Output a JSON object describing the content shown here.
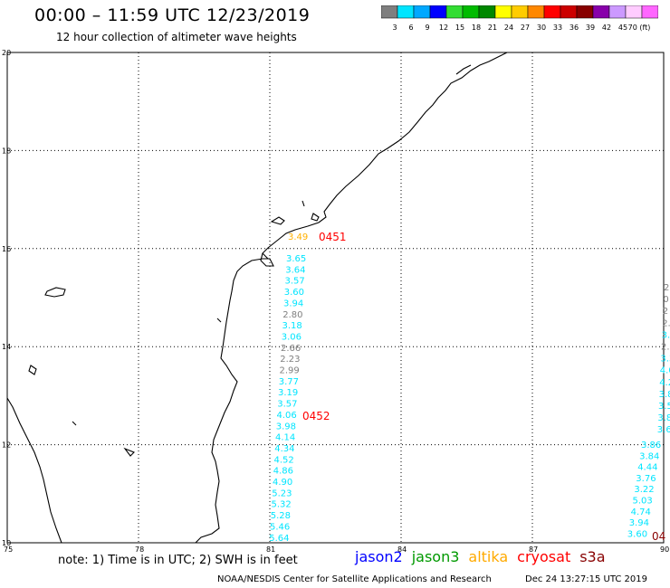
{
  "header": {
    "title": "00:00 – 11:59 UTC 12/23/2019",
    "subtitle": "12 hour collection of altimeter wave heights"
  },
  "color_scale": {
    "labels": [
      "3",
      "6",
      "9",
      "12",
      "15",
      "18",
      "21",
      "24",
      "27",
      "30",
      "33",
      "36",
      "39",
      "42",
      "45",
      "70 (ft)"
    ],
    "colors": [
      "#7f7f7f",
      "#00e5ff",
      "#00a8ff",
      "#0000ff",
      "#33dd33",
      "#00bb00",
      "#008800",
      "#ffff00",
      "#ffcc00",
      "#ff8800",
      "#ff0000",
      "#cc0000",
      "#880000",
      "#8800aa",
      "#cc99ff",
      "#ffccff",
      "#ff66ff"
    ]
  },
  "map": {
    "lat_labels": [
      "20",
      "18",
      "16",
      "14",
      "12",
      "10"
    ],
    "lon_labels": [
      "75",
      "78",
      "81",
      "84",
      "87",
      "90"
    ],
    "lat_range": [
      10,
      20
    ],
    "lon_range": [
      75,
      90
    ],
    "grid": "dotted"
  },
  "passes": [
    {
      "satellite": "jason3",
      "time_label": "0452",
      "time_color": "#ff0000",
      "values": [
        {
          "v": "3.65",
          "c": "#00e5ff"
        },
        {
          "v": "3.64",
          "c": "#00e5ff"
        },
        {
          "v": "3.57",
          "c": "#00e5ff"
        },
        {
          "v": "3.60",
          "c": "#00e5ff"
        },
        {
          "v": "3.94",
          "c": "#00e5ff"
        },
        {
          "v": "2.80",
          "c": "#7f7f7f"
        },
        {
          "v": "3.18",
          "c": "#00e5ff"
        },
        {
          "v": "3.06",
          "c": "#00e5ff"
        },
        {
          "v": "2.66",
          "c": "#7f7f7f"
        },
        {
          "v": "2.23",
          "c": "#7f7f7f"
        },
        {
          "v": "2.99",
          "c": "#7f7f7f"
        },
        {
          "v": "3.77",
          "c": "#00e5ff"
        },
        {
          "v": "3.19",
          "c": "#00e5ff"
        },
        {
          "v": "3.57",
          "c": "#00e5ff"
        },
        {
          "v": "4.06",
          "c": "#00e5ff"
        },
        {
          "v": "3.98",
          "c": "#00e5ff"
        },
        {
          "v": "4.14",
          "c": "#00e5ff"
        },
        {
          "v": "4.34",
          "c": "#00e5ff"
        },
        {
          "v": "4.52",
          "c": "#00e5ff"
        },
        {
          "v": "4.86",
          "c": "#00e5ff"
        },
        {
          "v": "4.90",
          "c": "#00e5ff"
        },
        {
          "v": "5.23",
          "c": "#00e5ff"
        },
        {
          "v": "5.32",
          "c": "#00e5ff"
        },
        {
          "v": "5.28",
          "c": "#00e5ff"
        },
        {
          "v": "5.46",
          "c": "#00e5ff"
        },
        {
          "v": "5.64",
          "c": "#00e5ff"
        }
      ]
    },
    {
      "satellite": "altika",
      "time_label": "0451",
      "time_color": "#ff0000",
      "values": [
        {
          "v": "3.49",
          "c": "#ffb000"
        }
      ]
    },
    {
      "satellite": "east-pass",
      "time_label": "04",
      "time_color": "#880000",
      "values": [
        {
          "v": "3.86",
          "c": "#00e5ff"
        },
        {
          "v": "3.84",
          "c": "#00e5ff"
        },
        {
          "v": "4.44",
          "c": "#00e5ff"
        },
        {
          "v": "3.76",
          "c": "#00e5ff"
        },
        {
          "v": "3.22",
          "c": "#00e5ff"
        },
        {
          "v": "5.03",
          "c": "#00e5ff"
        },
        {
          "v": "4.74",
          "c": "#00e5ff"
        },
        {
          "v": "3.94",
          "c": "#00e5ff"
        },
        {
          "v": "3.60",
          "c": "#00e5ff"
        }
      ],
      "edge_values": [
        {
          "v": "2",
          "c": "#7f7f7f"
        },
        {
          "v": "0",
          "c": "#7f7f7f"
        },
        {
          "v": "2",
          "c": "#7f7f7f"
        },
        {
          "v": "2.",
          "c": "#7f7f7f"
        },
        {
          "v": "3.5",
          "c": "#00e5ff"
        },
        {
          "v": "2.7",
          "c": "#7f7f7f"
        },
        {
          "v": "3.30",
          "c": "#00e5ff"
        },
        {
          "v": "4.06",
          "c": "#00e5ff"
        },
        {
          "v": "4.23",
          "c": "#00e5ff"
        },
        {
          "v": "3.80",
          "c": "#00e5ff"
        },
        {
          "v": "3.59",
          "c": "#00e5ff"
        },
        {
          "v": "3.86",
          "c": "#00e5ff"
        },
        {
          "v": "3.62",
          "c": "#00e5ff"
        }
      ]
    }
  ],
  "footer": {
    "note": "note:  1) Time is in UTC;  2) SWH is in feet",
    "legend": [
      {
        "label": "jason2",
        "color": "#0000ff"
      },
      {
        "label": "jason3",
        "color": "#009900"
      },
      {
        "label": "altika",
        "color": "#ffaa00"
      },
      {
        "label": "cryosat",
        "color": "#ff0000"
      },
      {
        "label": "s3a",
        "color": "#880000"
      }
    ],
    "credit": "NOAA/NESDIS Center for Satellite Applications and Research",
    "timestamp": "Dec 24 13:27:15 UTC 2019"
  }
}
